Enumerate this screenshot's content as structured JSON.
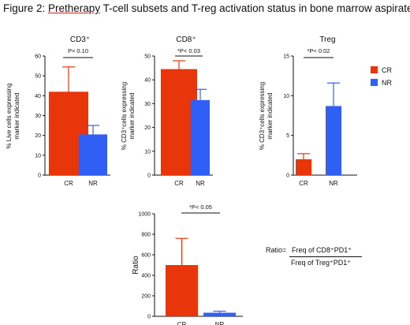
{
  "figure_title": {
    "prefix": "Figure 2: ",
    "underlined": "Pretherapy",
    "rest": " T-cell subsets and T-reg activation status in bone marrow aspirate"
  },
  "colors": {
    "CR": "#e8360a",
    "NR": "#2f5ff5"
  },
  "legend": [
    {
      "label": "CR",
      "color": "#e8360a"
    },
    {
      "label": "NR",
      "color": "#2f5ff5"
    }
  ],
  "ratio_formula": {
    "label": "Ratio=",
    "numerator": "Freq of CD8⁺PD1⁺",
    "denominator": "Freq of Treg⁺PD1⁺"
  },
  "chart_data": [
    {
      "type": "bar",
      "title": "CD3⁺",
      "ylabel": "% Live cells expressing marker indicated",
      "categories": [
        "CR",
        "NR"
      ],
      "values": [
        42,
        20.5
      ],
      "errors": [
        12.5,
        4.5
      ],
      "ylim": [
        0,
        60
      ],
      "yticks": [
        0,
        10,
        20,
        30,
        40,
        50,
        60
      ],
      "annotation": "P= 0.10"
    },
    {
      "type": "bar",
      "title": "CD8⁺",
      "ylabel": "% CD3⁺cells expressing marker indicated",
      "categories": [
        "CR",
        "NR"
      ],
      "values": [
        44.5,
        31.5
      ],
      "errors": [
        3.5,
        4.5
      ],
      "ylim": [
        0,
        50
      ],
      "yticks": [
        0,
        10,
        20,
        30,
        40,
        50
      ],
      "annotation": "*P< 0.03"
    },
    {
      "type": "bar",
      "title": "Treg",
      "ylabel": "% CD3⁺cells expressing marker indicated",
      "categories": [
        "CR",
        "NR"
      ],
      "values": [
        2,
        8.7
      ],
      "errors": [
        0.7,
        2.9
      ],
      "ylim": [
        0,
        15
      ],
      "yticks": [
        0,
        5,
        10,
        15
      ],
      "annotation": "*P< 0.02"
    },
    {
      "type": "bar",
      "title": "",
      "ylabel": "Ratio",
      "categories": [
        "CR",
        "NR"
      ],
      "values": [
        500,
        35
      ],
      "errors": [
        260,
        15
      ],
      "ylim": [
        0,
        1000
      ],
      "yticks": [
        0,
        200,
        400,
        600,
        800,
        1000
      ],
      "annotation": "*P< 0.05"
    }
  ]
}
